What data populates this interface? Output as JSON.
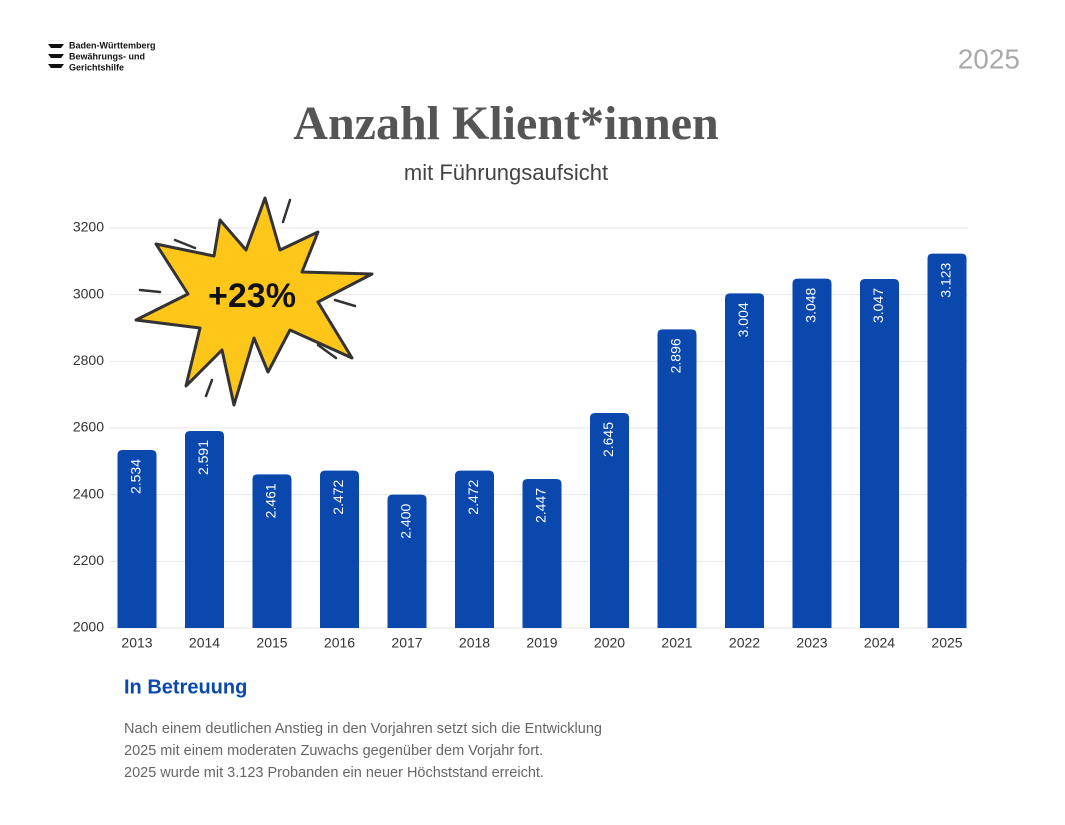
{
  "header": {
    "logo_lines": [
      "Baden-Württemberg",
      "Bewährungs- und",
      "Gerichtshilfe"
    ],
    "year": "2025"
  },
  "chart_data": {
    "type": "bar",
    "title": "Anzahl Klient*innen",
    "subtitle": "mit Führungsaufsicht",
    "annotation": "+23%",
    "categories": [
      "2013",
      "2014",
      "2015",
      "2016",
      "2017",
      "2018",
      "2019",
      "2020",
      "2021",
      "2022",
      "2023",
      "2024",
      "2025"
    ],
    "values": [
      2534,
      2591,
      2461,
      2472,
      2400,
      2472,
      2447,
      2645,
      2896,
      3004,
      3048,
      3047,
      3123
    ],
    "value_labels": [
      "2.534",
      "2.591",
      "2.461",
      "2.472",
      "2.400",
      "2.472",
      "2.447",
      "2.645",
      "2.896",
      "3.004",
      "3.048",
      "3.047",
      "3.123"
    ],
    "color": "#0a48ad",
    "ylim": [
      2000,
      3200
    ],
    "yticks": [
      2000,
      2200,
      2400,
      2600,
      2800,
      3000,
      3200
    ],
    "grid": true
  },
  "footer": {
    "heading": "In Betreuung",
    "lines": [
      "Nach einem deutlichen Anstieg in den Vorjahren setzt sich die Entwicklung",
      "2025 mit einem moderaten Zuwachs gegenüber dem Vorjahr fort.",
      "2025 wurde mit 3.123 Probanden ein neuer Höchststand erreicht."
    ]
  }
}
